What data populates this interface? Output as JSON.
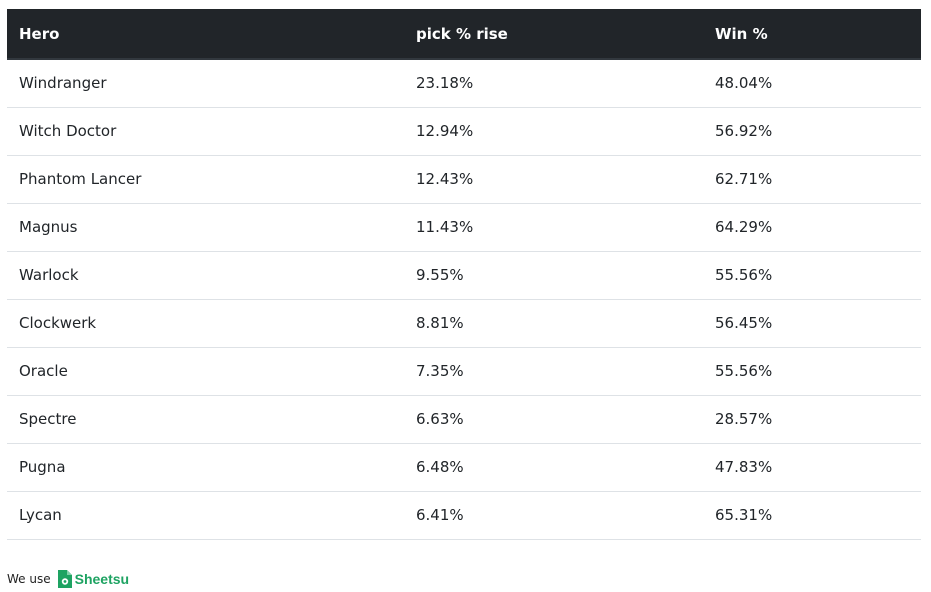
{
  "table": {
    "headers": [
      "Hero",
      "pick % rise",
      "Win %"
    ],
    "rows": [
      [
        "Windranger",
        "23.18%",
        "48.04%"
      ],
      [
        "Witch Doctor",
        "12.94%",
        "56.92%"
      ],
      [
        "Phantom Lancer",
        "12.43%",
        "62.71%"
      ],
      [
        "Magnus",
        "11.43%",
        "64.29%"
      ],
      [
        "Warlock",
        "9.55%",
        "55.56%"
      ],
      [
        "Clockwerk",
        "8.81%",
        "56.45%"
      ],
      [
        "Oracle",
        "7.35%",
        "55.56%"
      ],
      [
        "Spectre",
        "6.63%",
        "28.57%"
      ],
      [
        "Pugna",
        "6.48%",
        "47.83%"
      ],
      [
        "Lycan",
        "6.41%",
        "65.31%"
      ]
    ]
  },
  "footer": {
    "prefix": "We use",
    "brand": "Sheetsu",
    "brand_color": "#1ea362",
    "brand_icon": "sheetsu-logo-icon"
  }
}
